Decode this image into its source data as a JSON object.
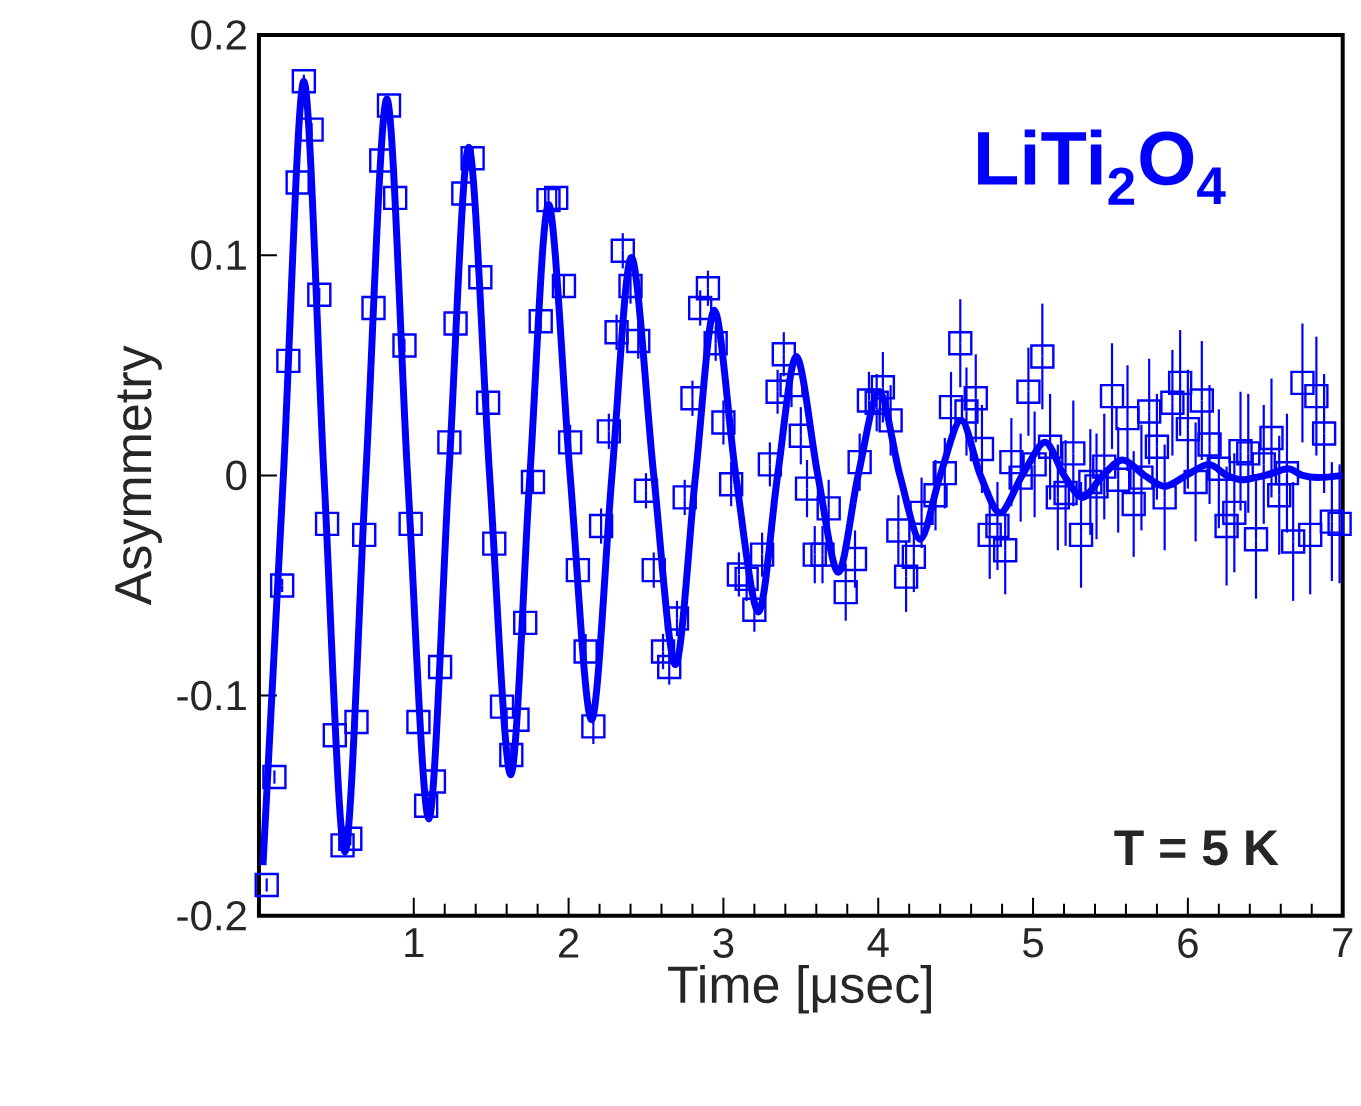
{
  "chart_data": {
    "type": "scatter",
    "xlabel": "Time [μsec]",
    "ylabel": "Asymmetry",
    "annotations": [
      "LiTi$_{2}$O$_{4}$",
      "T = 5 K"
    ],
    "xlim": [
      0,
      7
    ],
    "xticks": [
      1,
      2,
      3,
      4,
      5,
      6,
      7
    ],
    "ylim": [
      -0.2,
      0.2
    ],
    "yticks": [
      {
        "value": -0.2,
        "label": "-0.2"
      },
      {
        "value": -0.1,
        "label": "-0.1"
      },
      {
        "value": 0,
        "label": "0"
      },
      {
        "value": 0.1,
        "label": "0.1"
      },
      {
        "value": 0.2,
        "label": "0.2"
      }
    ],
    "series": [
      {
        "type": "scatter",
        "color": "#0000ff",
        "marker": "square",
        "x": [
          0.05,
          0.1,
          0.15,
          0.19,
          0.25,
          0.29,
          0.34,
          0.39,
          0.44,
          0.49,
          0.54,
          0.59,
          0.63,
          0.68,
          0.74,
          0.79,
          0.84,
          0.88,
          0.94,
          0.98,
          1.03,
          1.08,
          1.13,
          1.17,
          1.23,
          1.27,
          1.32,
          1.38,
          1.43,
          1.48,
          1.52,
          1.57,
          1.63,
          1.67,
          1.72,
          1.77,
          1.82,
          1.87,
          1.92,
          1.97,
          2.01,
          2.06,
          2.11,
          2.16,
          2.21,
          2.26,
          2.31,
          2.35,
          2.4,
          2.45,
          2.5,
          2.55,
          2.61,
          2.65,
          2.7,
          2.75,
          2.8,
          2.85,
          2.9,
          2.95,
          3.0,
          3.05,
          3.1,
          3.15,
          3.2,
          3.25,
          3.3,
          3.35,
          3.39,
          3.44,
          3.5,
          3.54,
          3.59,
          3.64,
          3.68,
          3.79,
          3.85,
          3.88,
          3.94,
          3.99,
          4.03,
          4.08,
          4.13,
          4.18,
          4.23,
          4.28,
          4.37,
          4.43,
          4.47,
          4.53,
          4.57,
          4.63,
          4.67,
          4.72,
          4.77,
          4.82,
          4.86,
          4.92,
          4.97,
          5.01,
          5.06,
          5.11,
          5.16,
          5.21,
          5.26,
          5.31,
          5.37,
          5.41,
          5.46,
          5.51,
          5.55,
          5.61,
          5.65,
          5.7,
          5.75,
          5.8,
          5.85,
          5.9,
          5.95,
          6.0,
          6.05,
          6.09,
          6.14,
          6.2,
          6.25,
          6.3,
          6.34,
          6.39,
          6.44,
          6.49,
          6.54,
          6.59,
          6.64,
          6.68,
          6.74,
          6.79,
          6.83,
          6.88,
          6.93,
          6.98
        ],
        "values": [
          -0.186,
          -0.137,
          -0.05,
          0.052,
          0.133,
          0.179,
          0.157,
          0.082,
          -0.022,
          -0.118,
          -0.168,
          -0.165,
          -0.112,
          -0.027,
          0.076,
          0.143,
          0.168,
          0.126,
          0.059,
          -0.022,
          -0.112,
          -0.15,
          -0.139,
          -0.087,
          0.015,
          0.069,
          0.128,
          0.144,
          0.09,
          0.033,
          -0.031,
          -0.105,
          -0.127,
          -0.111,
          -0.067,
          -0.003,
          0.07,
          0.125,
          0.126,
          0.086,
          0.015,
          -0.043,
          -0.08,
          -0.114,
          -0.023,
          0.02,
          0.065,
          0.102,
          0.086,
          0.061,
          -0.007,
          -0.043,
          -0.08,
          -0.087,
          -0.065,
          -0.01,
          0.035,
          0.076,
          0.085,
          0.06,
          0.024,
          -0.004,
          -0.045,
          -0.047,
          -0.061,
          -0.036,
          0.005,
          0.038,
          0.055,
          0.041,
          0.018,
          -0.006,
          -0.036,
          -0.036,
          -0.015,
          -0.053,
          -0.038,
          0.006,
          0.034,
          0.033,
          0.04,
          0.025,
          -0.025,
          -0.046,
          -0.037,
          -0.017,
          -0.009,
          0.001,
          0.031,
          0.06,
          0.029,
          0.035,
          0.012,
          -0.027,
          -0.023,
          -0.034,
          0.006,
          -0.001,
          0.038,
          0.005,
          0.054,
          0.013,
          -0.01,
          -0.008,
          0.01,
          -0.027,
          -0.003,
          -0.005,
          0.004,
          0.036,
          -0.002,
          0.026,
          -0.013,
          -0.001,
          0.029,
          0.013,
          -0.01,
          0.033,
          0.042,
          0.021,
          -0.003,
          0.034,
          0.014,
          0.003,
          -0.023,
          -0.017,
          0.011,
          0.01,
          -0.029,
          0.005,
          0.017,
          -0.009,
          0.001,
          -0.03,
          0.042,
          -0.027,
          0.036,
          0.019,
          -0.021,
          -0.022
        ],
        "errors": [
          0.003,
          0.003,
          0.003,
          0.003,
          0.003,
          0.003,
          0.003,
          0.003,
          0.003,
          0.003,
          0.003,
          0.003,
          0.003,
          0.003,
          0.003,
          0.003,
          0.003,
          0.003,
          0.003,
          0.003,
          0.005,
          0.005,
          0.005,
          0.005,
          0.005,
          0.005,
          0.005,
          0.005,
          0.005,
          0.005,
          0.005,
          0.005,
          0.005,
          0.005,
          0.005,
          0.005,
          0.005,
          0.005,
          0.005,
          0.005,
          0.008,
          0.008,
          0.008,
          0.008,
          0.008,
          0.008,
          0.008,
          0.008,
          0.008,
          0.008,
          0.008,
          0.008,
          0.008,
          0.008,
          0.008,
          0.008,
          0.008,
          0.008,
          0.008,
          0.008,
          0.01,
          0.01,
          0.01,
          0.01,
          0.01,
          0.01,
          0.01,
          0.01,
          0.01,
          0.01,
          0.013,
          0.013,
          0.013,
          0.013,
          0.013,
          0.013,
          0.013,
          0.013,
          0.013,
          0.013,
          0.016,
          0.016,
          0.016,
          0.016,
          0.016,
          0.016,
          0.016,
          0.016,
          0.016,
          0.02,
          0.02,
          0.02,
          0.02,
          0.02,
          0.02,
          0.02,
          0.02,
          0.02,
          0.02,
          0.024,
          0.024,
          0.024,
          0.024,
          0.024,
          0.024,
          0.024,
          0.024,
          0.024,
          0.024,
          0.024,
          0.024,
          0.024,
          0.024,
          0.024,
          0.024,
          0.024,
          0.024,
          0.024,
          0.024,
          0.027,
          0.027,
          0.027,
          0.027,
          0.027,
          0.027,
          0.027,
          0.027,
          0.027,
          0.027,
          0.027,
          0.027,
          0.027,
          0.027,
          0.027,
          0.027,
          0.027,
          0.027,
          0.027,
          0.027,
          0.027
        ]
      },
      {
        "type": "line",
        "color": "#0000ff",
        "marker": "none",
        "x": [
          0.026,
          0.158,
          0.29,
          0.42,
          0.555,
          0.69,
          0.826,
          0.96,
          1.097,
          1.226,
          1.355,
          1.49,
          1.626,
          1.75,
          1.871,
          2.01,
          2.148,
          2.28,
          2.406,
          2.55,
          2.69,
          2.82,
          2.942,
          3.08,
          3.226,
          3.35,
          3.471,
          3.61,
          3.742,
          3.87,
          4.006,
          4.14,
          4.271,
          4.4,
          4.535,
          4.66,
          4.787,
          4.93,
          5.077,
          5.2,
          5.32,
          5.45,
          5.58,
          5.72,
          5.85,
          5.99,
          6.135,
          6.25,
          6.355,
          6.5,
          6.645,
          6.74,
          6.84,
          7.0
        ],
        "values": [
          -0.177,
          0,
          0.179,
          0,
          -0.171,
          0,
          0.171,
          0,
          -0.156,
          0,
          0.149,
          0,
          -0.136,
          0,
          0.123,
          0,
          -0.111,
          0,
          0.099,
          0,
          -0.086,
          0,
          0.075,
          0,
          -0.062,
          0,
          0.054,
          0,
          -0.044,
          0,
          0.038,
          0,
          -0.029,
          0,
          0.025,
          0,
          -0.017,
          0,
          0.015,
          0,
          -0.01,
          0,
          0.007,
          0,
          -0.005,
          0,
          0.005,
          0,
          -0.002,
          0,
          0.003,
          0,
          -0.001,
          0
        ]
      }
    ]
  }
}
